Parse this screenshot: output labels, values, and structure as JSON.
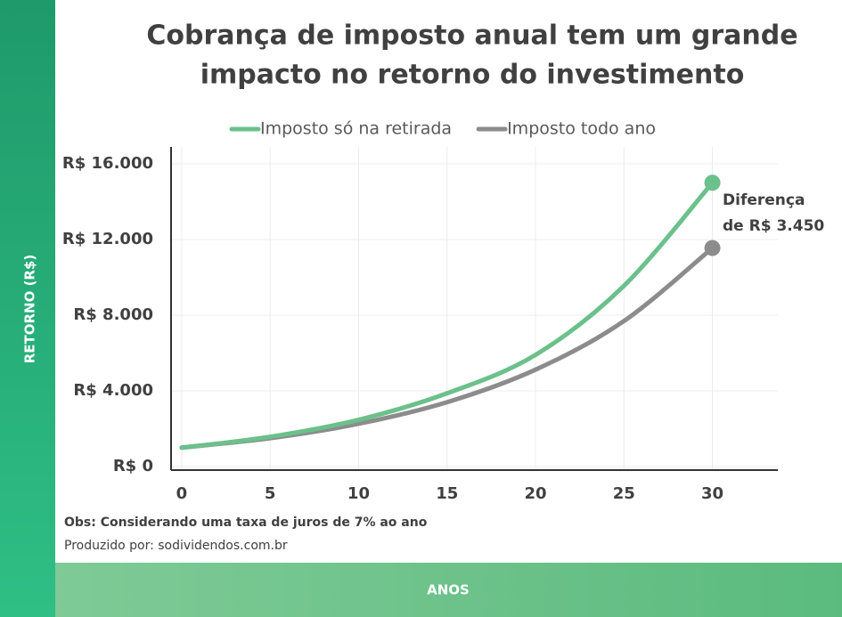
{
  "chart_data": {
    "type": "line",
    "title": [
      "Cobrança de imposto anual tem um grande",
      "impacto no retorno do investimento"
    ],
    "y_label": "RETORNO (R$)",
    "x_label": "ANOS",
    "x": [
      0,
      5,
      10,
      15,
      20,
      25,
      30
    ],
    "series": [
      {
        "name": "Imposto só na retirada",
        "color": "#6cc08b",
        "values": [
          1000,
          1570,
          2470,
          3870,
          5900,
          9550,
          15000
        ]
      },
      {
        "name": "Imposto todo ano",
        "color": "#8c8c8c",
        "values": [
          1000,
          1500,
          2260,
          3400,
          5120,
          7690,
          11550
        ]
      }
    ],
    "xlim": [
      -0.6,
      33.7
    ],
    "xticks": [
      0,
      5,
      10,
      15,
      20,
      25,
      30
    ],
    "ylim": [
      0,
      16000
    ],
    "yticks": [
      {
        "value": 0,
        "label": "R$ 0"
      },
      {
        "value": 4000,
        "label": "R$ 4.000"
      },
      {
        "value": 8000,
        "label": "R$ 8.000"
      },
      {
        "value": 12000,
        "label": "R$ 12.000"
      },
      {
        "value": 16000,
        "label": "R$ 16.000"
      }
    ],
    "grid": true,
    "legend": "top",
    "annotation": [
      "Diferença",
      "de R$ 3.450"
    ],
    "notes": [
      "Obs: Considerando uma taxa de juros de 7% ao ano",
      "Produzido por: sodividendos.com.br"
    ]
  }
}
